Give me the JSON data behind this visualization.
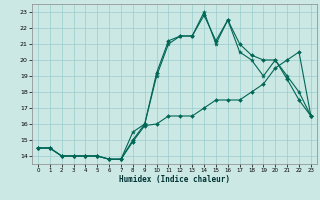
{
  "title": "",
  "xlabel": "Humidex (Indice chaleur)",
  "ylabel": "",
  "bg_color": "#cce8e4",
  "grid_color": "#99cccc",
  "line_color": "#006655",
  "xlim": [
    -0.5,
    23.5
  ],
  "ylim": [
    13.5,
    23.5
  ],
  "xticks": [
    0,
    1,
    2,
    3,
    4,
    5,
    6,
    7,
    8,
    9,
    10,
    11,
    12,
    13,
    14,
    15,
    16,
    17,
    18,
    19,
    20,
    21,
    22,
    23
  ],
  "yticks": [
    14,
    15,
    16,
    17,
    18,
    19,
    20,
    21,
    22,
    23
  ],
  "series1_x": [
    0,
    1,
    2,
    3,
    4,
    5,
    6,
    7,
    8,
    9,
    10,
    11,
    12,
    13,
    14,
    15,
    16,
    17,
    18,
    19,
    20,
    21,
    22,
    23
  ],
  "series1_y": [
    14.5,
    14.5,
    14.0,
    14.0,
    14.0,
    14.0,
    13.8,
    13.8,
    14.9,
    15.9,
    16.0,
    16.5,
    16.5,
    16.5,
    17.0,
    17.5,
    17.5,
    17.5,
    18.0,
    18.5,
    19.5,
    20.0,
    20.5,
    16.5
  ],
  "series2_x": [
    0,
    1,
    2,
    3,
    4,
    5,
    6,
    7,
    8,
    9,
    10,
    11,
    12,
    13,
    14,
    15,
    16,
    17,
    18,
    19,
    20,
    21,
    22,
    23
  ],
  "series2_y": [
    14.5,
    14.5,
    14.0,
    14.0,
    14.0,
    14.0,
    13.8,
    13.8,
    15.0,
    16.0,
    19.2,
    21.2,
    21.5,
    21.5,
    22.8,
    21.2,
    22.5,
    21.0,
    20.3,
    20.0,
    20.0,
    18.8,
    17.5,
    16.5
  ],
  "series3_x": [
    0,
    1,
    2,
    3,
    4,
    5,
    6,
    7,
    8,
    9,
    10,
    11,
    12,
    13,
    14,
    15,
    16,
    17,
    18,
    19,
    20,
    21,
    22,
    23
  ],
  "series3_y": [
    14.5,
    14.5,
    14.0,
    14.0,
    14.0,
    14.0,
    13.8,
    13.8,
    15.5,
    16.0,
    19.0,
    21.0,
    21.5,
    21.5,
    23.0,
    21.0,
    22.5,
    20.5,
    20.0,
    19.0,
    20.0,
    19.0,
    18.0,
    16.5
  ]
}
